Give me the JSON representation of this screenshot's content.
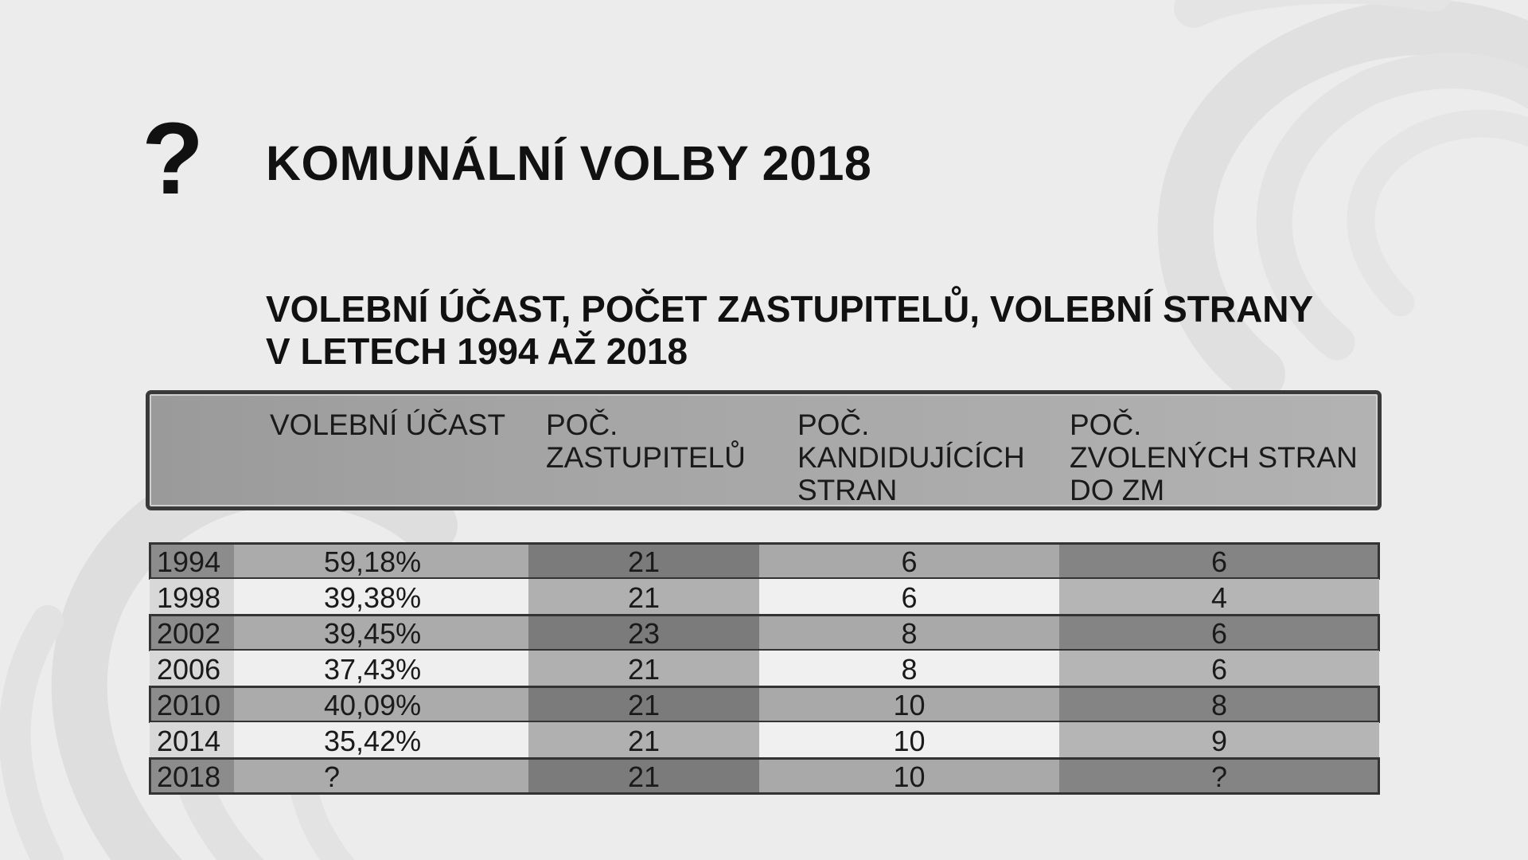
{
  "header": {
    "icon": "question-mark-icon",
    "icon_glyph": "?",
    "title": "KOMUNÁLNÍ VOLBY 2018"
  },
  "subtitle": {
    "line1": "VOLEBNÍ ÚČAST, POČET ZASTUPITELŮ, VOLEBNÍ STRANY",
    "line2": "V LETECH 1994 AŽ 2018"
  },
  "table": {
    "columns": [
      {
        "lines": [
          "VOLEBNÍ ÚČAST"
        ]
      },
      {
        "lines": [
          "POČ.",
          "ZASTUPITELŮ"
        ]
      },
      {
        "lines": [
          "POČ.",
          "KANDIDUJÍCÍCH",
          "STRAN"
        ]
      },
      {
        "lines": [
          "POČ.",
          "ZVOLENÝCH STRAN",
          "DO ZM"
        ]
      }
    ],
    "rows": [
      {
        "year": "1994",
        "turnout": "59,18%",
        "seats": "21",
        "candidate_parties": "6",
        "elected_parties": "6"
      },
      {
        "year": "1998",
        "turnout": "39,38%",
        "seats": "21",
        "candidate_parties": "6",
        "elected_parties": "4"
      },
      {
        "year": "2002",
        "turnout": "39,45%",
        "seats": "23",
        "candidate_parties": "8",
        "elected_parties": "6"
      },
      {
        "year": "2006",
        "turnout": "37,43%",
        "seats": "21",
        "candidate_parties": "8",
        "elected_parties": "6"
      },
      {
        "year": "2010",
        "turnout": "40,09%",
        "seats": "21",
        "candidate_parties": "10",
        "elected_parties": "8"
      },
      {
        "year": "2014",
        "turnout": "35,42%",
        "seats": "21",
        "candidate_parties": "10",
        "elected_parties": "9"
      },
      {
        "year": "2018",
        "turnout": "?",
        "seats": "21",
        "candidate_parties": "10",
        "elected_parties": "?"
      }
    ]
  },
  "colors": {
    "background": "#ececec",
    "text": "#111111",
    "row_dark_year": "#8c8c8c",
    "row_dark_seats": "#7b7b7b",
    "row_light": "#efefef"
  }
}
